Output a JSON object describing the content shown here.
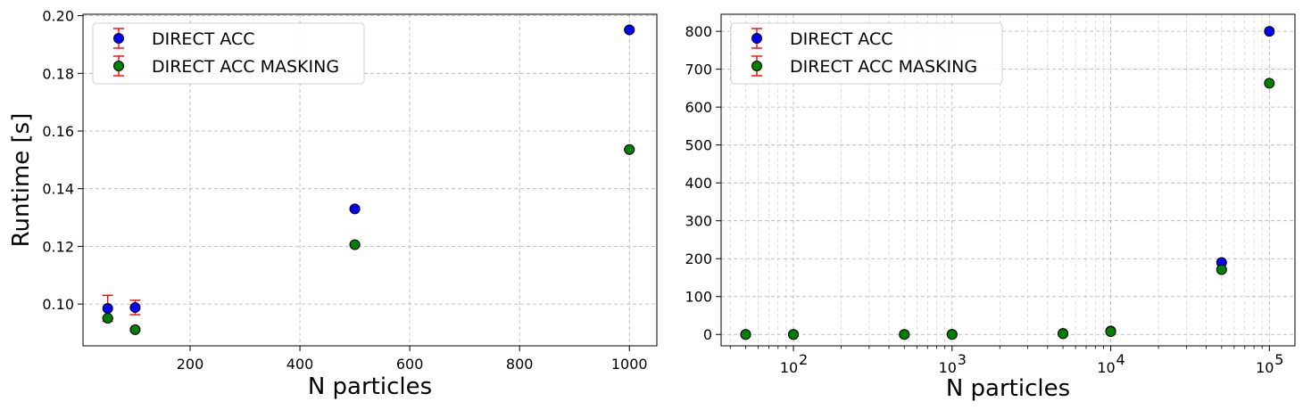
{
  "chart_data": [
    {
      "type": "scatter",
      "xscale": "linear",
      "xlabel": "N particles",
      "ylabel": "Runtime [s]",
      "xlim": [
        5,
        1050
      ],
      "ylim": [
        0.0855,
        0.2005
      ],
      "xticks": [
        200,
        400,
        600,
        800,
        1000
      ],
      "xtick_labels": [
        "200",
        "400",
        "600",
        "800",
        "1000"
      ],
      "yticks": [
        0.1,
        0.12,
        0.14,
        0.16,
        0.18,
        0.2
      ],
      "ytick_labels": [
        "0.10",
        "0.12",
        "0.14",
        "0.16",
        "0.18",
        "0.20"
      ],
      "grid": true,
      "legend_position": "top-left",
      "series": [
        {
          "name": "DIRECT ACC",
          "color": "#0000ff",
          "x": [
            50,
            100,
            500,
            1000
          ],
          "y": [
            0.0985,
            0.0988,
            0.133,
            0.1951
          ],
          "yerr": [
            0.0045,
            0.0025,
            0.0003,
            0.0003
          ]
        },
        {
          "name": "DIRECT ACC MASKING",
          "color": "#008000",
          "x": [
            50,
            100,
            500,
            1000
          ],
          "y": [
            0.0951,
            0.0911,
            0.1206,
            0.1536
          ],
          "yerr": [
            0.0003,
            0.0003,
            0.0003,
            0.0003
          ]
        }
      ],
      "errorbar_color": "#ff0000"
    },
    {
      "type": "scatter",
      "xscale": "log",
      "xlabel": "N particles",
      "ylabel": "",
      "xlim": [
        35,
        145000
      ],
      "ylim": [
        -30,
        845
      ],
      "xticks": [
        100,
        1000,
        10000,
        100000
      ],
      "xtick_labels": [
        {
          "base": "10",
          "exp": "2"
        },
        {
          "base": "10",
          "exp": "3"
        },
        {
          "base": "10",
          "exp": "4"
        },
        {
          "base": "10",
          "exp": "5"
        }
      ],
      "yticks": [
        0,
        100,
        200,
        300,
        400,
        500,
        600,
        700,
        800
      ],
      "ytick_labels": [
        "0",
        "100",
        "200",
        "300",
        "400",
        "500",
        "600",
        "700",
        "800"
      ],
      "grid": true,
      "legend_position": "top-left",
      "series": [
        {
          "name": "DIRECT ACC",
          "color": "#0000ff",
          "x": [
            50,
            100,
            500,
            1000,
            5000,
            10000,
            50000,
            100000
          ],
          "y": [
            0.1,
            0.1,
            0.13,
            0.2,
            2.5,
            9,
            190,
            800
          ],
          "yerr": [
            0,
            0,
            0,
            0,
            0,
            0,
            0,
            0
          ]
        },
        {
          "name": "DIRECT ACC MASKING",
          "color": "#008000",
          "x": [
            50,
            100,
            500,
            1000,
            5000,
            10000,
            50000,
            100000
          ],
          "y": [
            0.1,
            0.09,
            0.12,
            0.15,
            2.0,
            7.5,
            171,
            663
          ],
          "yerr": [
            0,
            0,
            0,
            0,
            0,
            0,
            0,
            0
          ]
        }
      ],
      "errorbar_color": "#ff0000"
    }
  ]
}
